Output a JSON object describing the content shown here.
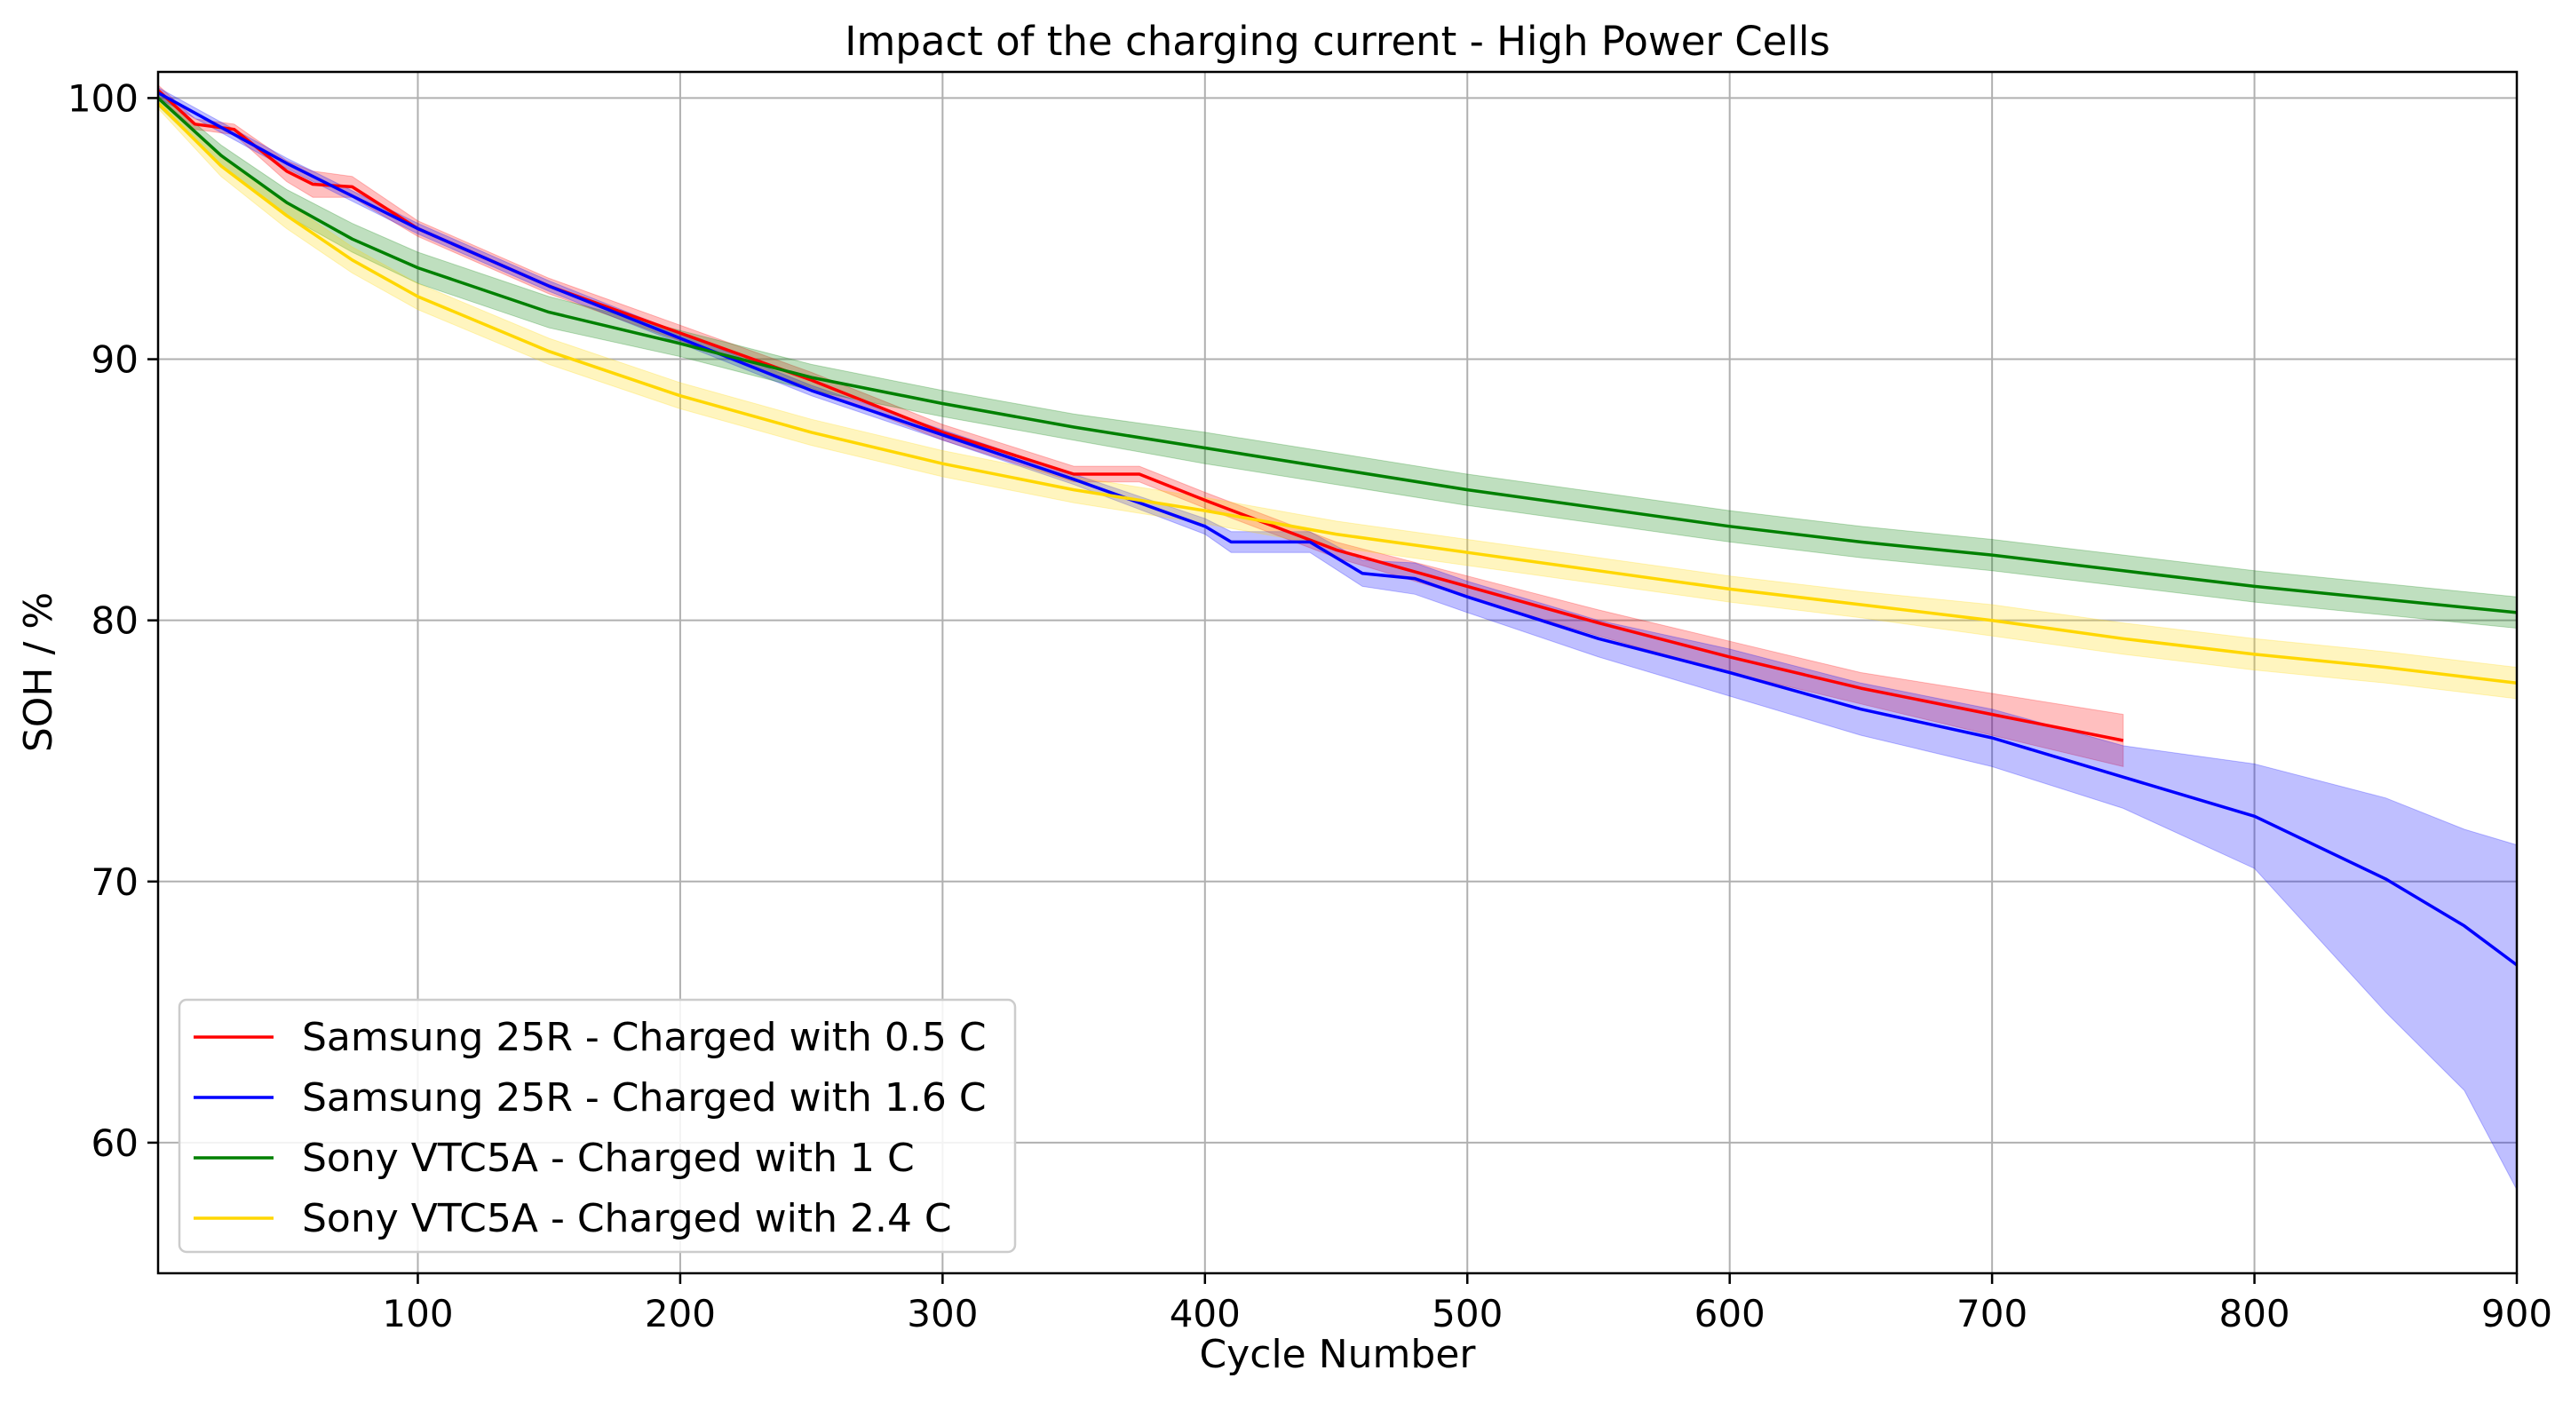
{
  "chart_data": {
    "type": "line",
    "title": "Impact of the charging current - High Power Cells",
    "xlabel": "Cycle Number",
    "ylabel": "SOH / %",
    "xlim": [
      1,
      900
    ],
    "ylim": [
      55,
      101
    ],
    "xticks": [
      100,
      200,
      300,
      400,
      500,
      600,
      700,
      800,
      900
    ],
    "yticks": [
      60,
      70,
      80,
      90,
      100
    ],
    "grid": true,
    "legend_position": "lower-left",
    "series": [
      {
        "name": "Samsung 25R - Charged with 0.5 C",
        "color": "#ff0000",
        "band_color": "#ff0000",
        "x": [
          1,
          15,
          30,
          50,
          60,
          75,
          100,
          150,
          200,
          250,
          300,
          350,
          375,
          400,
          450,
          500,
          550,
          600,
          650,
          700,
          750
        ],
        "y": [
          100.3,
          99.0,
          98.8,
          97.2,
          96.7,
          96.6,
          95.0,
          92.8,
          91.0,
          89.2,
          87.2,
          85.6,
          85.6,
          84.6,
          82.7,
          81.3,
          79.9,
          78.6,
          77.4,
          76.4,
          75.4
        ],
        "lower": [
          100.1,
          98.8,
          98.6,
          96.8,
          96.2,
          96.2,
          94.7,
          92.5,
          90.7,
          88.9,
          86.9,
          85.3,
          85.3,
          84.3,
          82.4,
          80.9,
          79.4,
          78.0,
          76.8,
          75.6,
          74.4
        ],
        "upper": [
          100.5,
          99.2,
          99.0,
          97.6,
          97.2,
          97.0,
          95.3,
          93.1,
          91.3,
          89.5,
          87.5,
          85.9,
          85.9,
          84.9,
          83.0,
          81.7,
          80.4,
          79.2,
          78.0,
          77.2,
          76.4
        ]
      },
      {
        "name": "Samsung 25R - Charged with 1.6 C",
        "color": "#0000ff",
        "band_color": "#0000ff",
        "x": [
          1,
          50,
          100,
          150,
          200,
          250,
          300,
          350,
          400,
          410,
          440,
          460,
          480,
          500,
          550,
          600,
          650,
          700,
          750,
          800,
          850,
          880,
          900
        ],
        "y": [
          100.2,
          97.5,
          95.0,
          92.8,
          90.8,
          88.8,
          87.1,
          85.4,
          83.6,
          83.0,
          83.0,
          81.8,
          81.6,
          80.9,
          79.3,
          78.0,
          76.6,
          75.5,
          74.0,
          72.5,
          70.1,
          68.3,
          66.8
        ],
        "lower": [
          100.0,
          97.3,
          94.8,
          92.6,
          90.6,
          88.6,
          86.9,
          85.2,
          83.3,
          82.6,
          82.6,
          81.3,
          81.0,
          80.3,
          78.6,
          77.1,
          75.6,
          74.4,
          72.8,
          70.5,
          65.0,
          62.0,
          58.2
        ],
        "upper": [
          100.4,
          97.7,
          95.2,
          93.0,
          91.0,
          89.0,
          87.3,
          85.6,
          83.9,
          83.4,
          83.4,
          82.3,
          82.2,
          81.5,
          80.0,
          78.9,
          77.6,
          76.6,
          75.2,
          74.5,
          73.2,
          72.0,
          71.4
        ]
      },
      {
        "name": "Sony VTC5A - Charged with 1 C",
        "color": "#008000",
        "band_color": "#008000",
        "x": [
          1,
          25,
          50,
          75,
          100,
          150,
          200,
          250,
          300,
          350,
          400,
          450,
          500,
          550,
          600,
          650,
          700,
          750,
          800,
          850,
          900
        ],
        "y": [
          100.0,
          97.8,
          96.0,
          94.6,
          93.5,
          91.8,
          90.6,
          89.3,
          88.3,
          87.4,
          86.6,
          85.8,
          85.0,
          84.3,
          83.6,
          83.0,
          82.5,
          81.9,
          81.3,
          80.8,
          80.3
        ],
        "lower": [
          99.7,
          97.4,
          95.5,
          94.1,
          92.9,
          91.2,
          90.1,
          88.8,
          87.8,
          86.9,
          86.0,
          85.2,
          84.4,
          83.7,
          83.0,
          82.4,
          81.9,
          81.3,
          80.7,
          80.2,
          79.7
        ],
        "upper": [
          100.2,
          98.2,
          96.5,
          95.2,
          94.1,
          92.4,
          91.1,
          89.8,
          88.8,
          87.9,
          87.2,
          86.4,
          85.6,
          84.9,
          84.2,
          83.6,
          83.1,
          82.5,
          81.9,
          81.4,
          80.9
        ]
      },
      {
        "name": "Sony VTC5A - Charged with 2.4 C",
        "color": "#ffd700",
        "band_color": "#ffd700",
        "x": [
          1,
          25,
          50,
          75,
          100,
          150,
          200,
          250,
          300,
          350,
          400,
          450,
          500,
          550,
          600,
          650,
          700,
          750,
          800,
          850,
          900
        ],
        "y": [
          99.8,
          97.4,
          95.5,
          93.8,
          92.4,
          90.3,
          88.6,
          87.2,
          86.0,
          85.0,
          84.2,
          83.3,
          82.6,
          81.9,
          81.2,
          80.6,
          80.0,
          79.3,
          78.7,
          78.2,
          77.6
        ],
        "lower": [
          99.6,
          97.0,
          95.0,
          93.3,
          91.9,
          89.8,
          88.1,
          86.7,
          85.5,
          84.5,
          83.7,
          82.8,
          82.1,
          81.4,
          80.7,
          80.1,
          79.4,
          78.7,
          78.1,
          77.6,
          77.0
        ],
        "upper": [
          100.0,
          97.8,
          96.0,
          94.3,
          92.9,
          90.8,
          89.1,
          87.7,
          86.5,
          85.5,
          84.7,
          83.8,
          83.1,
          82.4,
          81.7,
          81.1,
          80.6,
          79.9,
          79.3,
          78.8,
          78.2
        ]
      }
    ]
  }
}
